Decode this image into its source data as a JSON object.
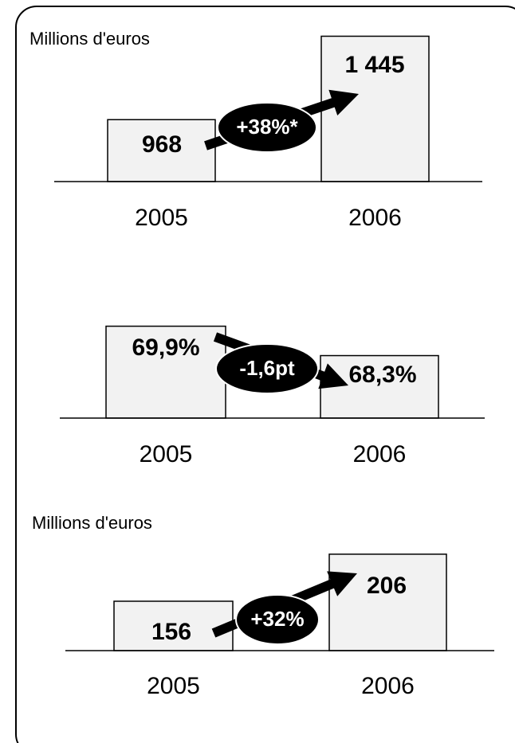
{
  "chart_data": [
    {
      "type": "bar",
      "subtitle": "Millions d'euros",
      "categories": [
        "2005",
        "2006"
      ],
      "values": [
        968,
        1445
      ],
      "value_labels": [
        "968",
        "1 445"
      ],
      "annotation": "+38%*",
      "color": "#f2f2f2",
      "ylim": [
        614,
        1470
      ]
    },
    {
      "type": "bar",
      "categories": [
        "2005",
        "2006"
      ],
      "values": [
        69.9,
        68.3
      ],
      "value_labels": [
        "69,9%",
        "68,3%"
      ],
      "annotation": "-1,6pt",
      "color": "#f2f2f2",
      "ylim": [
        64.9,
        70.1
      ]
    },
    {
      "type": "bar",
      "subtitle": "Millions d'euros",
      "categories": [
        "2005",
        "2006"
      ],
      "values": [
        156,
        206
      ],
      "annotation": "+32%",
      "color": "#f2f2f2",
      "ylim": [
        103.5,
        211
      ]
    }
  ]
}
